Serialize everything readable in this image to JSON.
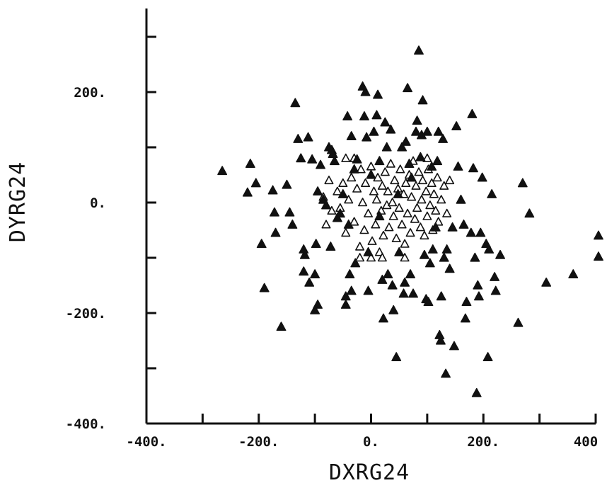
{
  "chart_data": {
    "type": "scatter",
    "title": "",
    "xlabel": "DXRG24",
    "ylabel": "DYRG24",
    "xlim": [
      -400,
      400
    ],
    "ylim": [
      -400,
      300
    ],
    "x_ticks": [
      -400,
      -300,
      -200,
      -100,
      0,
      100,
      200,
      300,
      400
    ],
    "x_tick_labels": [
      "-400.",
      "",
      "-200.",
      "",
      "0.",
      "",
      "200.",
      "",
      "400"
    ],
    "y_ticks": [
      -400,
      -300,
      -200,
      -100,
      0,
      100,
      200,
      300
    ],
    "y_tick_labels": [
      "-400.",
      "",
      "-200.",
      "",
      "0.",
      "",
      "200.",
      ""
    ],
    "grid": false,
    "marker": "triangle",
    "points": [
      [
        -265,
        57
      ],
      [
        -215,
        70
      ],
      [
        -220,
        18
      ],
      [
        -205,
        35
      ],
      [
        -195,
        -75
      ],
      [
        -190,
        -155
      ],
      [
        -175,
        22
      ],
      [
        -170,
        -55
      ],
      [
        -172,
        -18
      ],
      [
        -160,
        -225
      ],
      [
        -150,
        32
      ],
      [
        -145,
        -18
      ],
      [
        -140,
        -40
      ],
      [
        -135,
        180
      ],
      [
        -130,
        115
      ],
      [
        -125,
        80
      ],
      [
        -120,
        -85
      ],
      [
        -120,
        -125
      ],
      [
        -118,
        -95
      ],
      [
        -110,
        -145
      ],
      [
        -112,
        118
      ],
      [
        -105,
        78
      ],
      [
        -100,
        -195
      ],
      [
        -100,
        -130
      ],
      [
        -98,
        -75
      ],
      [
        -95,
        -185
      ],
      [
        -95,
        20
      ],
      [
        -90,
        68
      ],
      [
        -85,
        5
      ],
      [
        -80,
        -5
      ],
      [
        -75,
        100
      ],
      [
        -72,
        -80
      ],
      [
        -70,
        95
      ],
      [
        -68,
        88
      ],
      [
        -65,
        75
      ],
      [
        -60,
        -28
      ],
      [
        -55,
        -20
      ],
      [
        -50,
        15
      ],
      [
        -45,
        -185
      ],
      [
        -45,
        -170
      ],
      [
        -42,
        156
      ],
      [
        -40,
        -40
      ],
      [
        -38,
        -130
      ],
      [
        -35,
        -160
      ],
      [
        -35,
        120
      ],
      [
        -30,
        60
      ],
      [
        -28,
        -110
      ],
      [
        -25,
        78
      ],
      [
        -15,
        210
      ],
      [
        -12,
        156
      ],
      [
        -10,
        200
      ],
      [
        -8,
        118
      ],
      [
        -5,
        -160
      ],
      [
        -5,
        -90
      ],
      [
        0,
        50
      ],
      [
        5,
        128
      ],
      [
        10,
        158
      ],
      [
        12,
        195
      ],
      [
        15,
        75
      ],
      [
        15,
        -25
      ],
      [
        20,
        -140
      ],
      [
        22,
        -210
      ],
      [
        25,
        145
      ],
      [
        28,
        100
      ],
      [
        30,
        -130
      ],
      [
        35,
        132
      ],
      [
        38,
        -150
      ],
      [
        40,
        -195
      ],
      [
        45,
        -280
      ],
      [
        48,
        15
      ],
      [
        50,
        -90
      ],
      [
        55,
        100
      ],
      [
        58,
        -165
      ],
      [
        60,
        -145
      ],
      [
        62,
        110
      ],
      [
        65,
        207
      ],
      [
        68,
        70
      ],
      [
        70,
        -130
      ],
      [
        72,
        45
      ],
      [
        75,
        -165
      ],
      [
        80,
        128
      ],
      [
        82,
        148
      ],
      [
        85,
        275
      ],
      [
        88,
        82
      ],
      [
        90,
        122
      ],
      [
        92,
        185
      ],
      [
        95,
        -95
      ],
      [
        98,
        -175
      ],
      [
        100,
        128
      ],
      [
        102,
        -180
      ],
      [
        105,
        -110
      ],
      [
        108,
        65
      ],
      [
        110,
        -85
      ],
      [
        115,
        -45
      ],
      [
        118,
        75
      ],
      [
        120,
        128
      ],
      [
        122,
        -240
      ],
      [
        124,
        -250
      ],
      [
        125,
        -170
      ],
      [
        128,
        115
      ],
      [
        130,
        -100
      ],
      [
        133,
        -310
      ],
      [
        135,
        -85
      ],
      [
        140,
        -120
      ],
      [
        145,
        -45
      ],
      [
        148,
        -260
      ],
      [
        152,
        138
      ],
      [
        155,
        65
      ],
      [
        160,
        5
      ],
      [
        165,
        -40
      ],
      [
        168,
        -210
      ],
      [
        170,
        -180
      ],
      [
        178,
        -55
      ],
      [
        180,
        160
      ],
      [
        182,
        62
      ],
      [
        185,
        -100
      ],
      [
        188,
        -345
      ],
      [
        190,
        -150
      ],
      [
        192,
        -170
      ],
      [
        195,
        -55
      ],
      [
        198,
        45
      ],
      [
        205,
        -75
      ],
      [
        208,
        -280
      ],
      [
        210,
        -85
      ],
      [
        215,
        15
      ],
      [
        220,
        -135
      ],
      [
        222,
        -160
      ],
      [
        230,
        -95
      ],
      [
        262,
        -218
      ],
      [
        270,
        35
      ],
      [
        282,
        -20
      ],
      [
        312,
        -145
      ],
      [
        360,
        -130
      ],
      [
        405,
        -60
      ],
      [
        405,
        -98
      ]
    ],
    "dense_cluster": {
      "description_marker": "open-triangle",
      "points": [
        [
          -60,
          20
        ],
        [
          -55,
          -10
        ],
        [
          -50,
          35
        ],
        [
          -45,
          -55
        ],
        [
          -40,
          5
        ],
        [
          -35,
          45
        ],
        [
          -30,
          -35
        ],
        [
          -25,
          25
        ],
        [
          -20,
          -80
        ],
        [
          -18,
          60
        ],
        [
          -15,
          0
        ],
        [
          -12,
          -50
        ],
        [
          -10,
          35
        ],
        [
          -5,
          -20
        ],
        [
          0,
          65
        ],
        [
          2,
          -70
        ],
        [
          5,
          20
        ],
        [
          8,
          -40
        ],
        [
          10,
          5
        ],
        [
          12,
          45
        ],
        [
          15,
          -90
        ],
        [
          18,
          -15
        ],
        [
          20,
          30
        ],
        [
          22,
          -60
        ],
        [
          25,
          55
        ],
        [
          28,
          -5
        ],
        [
          30,
          20
        ],
        [
          32,
          -45
        ],
        [
          35,
          70
        ],
        [
          38,
          0
        ],
        [
          40,
          -25
        ],
        [
          42,
          40
        ],
        [
          45,
          -65
        ],
        [
          48,
          25
        ],
        [
          50,
          -10
        ],
        [
          52,
          60
        ],
        [
          55,
          -40
        ],
        [
          58,
          15
        ],
        [
          60,
          -75
        ],
        [
          62,
          35
        ],
        [
          65,
          -20
        ],
        [
          68,
          50
        ],
        [
          70,
          -55
        ],
        [
          72,
          10
        ],
        [
          75,
          75
        ],
        [
          78,
          -30
        ],
        [
          80,
          30
        ],
        [
          82,
          -10
        ],
        [
          85,
          55
        ],
        [
          88,
          -45
        ],
        [
          90,
          5
        ],
        [
          92,
          40
        ],
        [
          95,
          -60
        ],
        [
          98,
          20
        ],
        [
          100,
          -25
        ],
        [
          102,
          60
        ],
        [
          105,
          -5
        ],
        [
          108,
          35
        ],
        [
          110,
          -50
        ],
        [
          112,
          15
        ],
        [
          115,
          -15
        ],
        [
          118,
          45
        ],
        [
          120,
          -35
        ],
        [
          125,
          5
        ],
        [
          130,
          30
        ],
        [
          135,
          -20
        ],
        [
          140,
          40
        ],
        [
          -70,
          -15
        ],
        [
          -75,
          40
        ],
        [
          -80,
          -40
        ],
        [
          -85,
          10
        ],
        [
          -30,
          80
        ],
        [
          -20,
          -100
        ],
        [
          0,
          -100
        ],
        [
          20,
          -100
        ],
        [
          60,
          -100
        ],
        [
          100,
          80
        ],
        [
          -45,
          80
        ]
      ]
    }
  }
}
